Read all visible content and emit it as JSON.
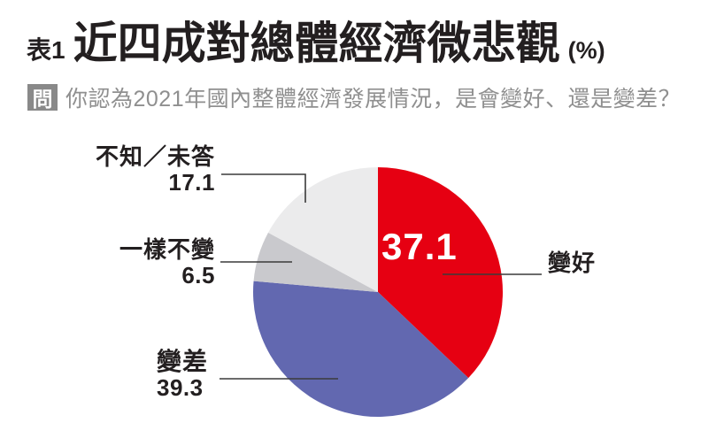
{
  "header": {
    "table_label": "表1",
    "title": "近四成對總體經濟微悲觀",
    "unit": "(%)"
  },
  "question": {
    "prefix": "問",
    "text": "你認為2021年國內整體經濟發展情況，是會變好、還是變差？"
  },
  "chart_data": {
    "type": "pie",
    "title": "近四成對總體經濟微悲觀(%)",
    "unit": "%",
    "start_angle_deg": 0,
    "direction": "clockwise",
    "legend_position": "none",
    "slices": [
      {
        "label": "變好",
        "value": 37.1,
        "color": "#e60012",
        "value_label_inside": true
      },
      {
        "label": "變差",
        "value": 39.3,
        "color": "#6268b0"
      },
      {
        "label": "一樣不變",
        "value": 6.5,
        "color": "#c9c9cd"
      },
      {
        "label": "不知／未答",
        "value": 17.1,
        "color": "#ebebec"
      }
    ]
  },
  "colors": {
    "title_text": "#231f20",
    "question_text": "#8f8f8f",
    "question_box": "#898989",
    "leader_line": "#3a3a3a",
    "inside_value_text": "#ffffff"
  }
}
